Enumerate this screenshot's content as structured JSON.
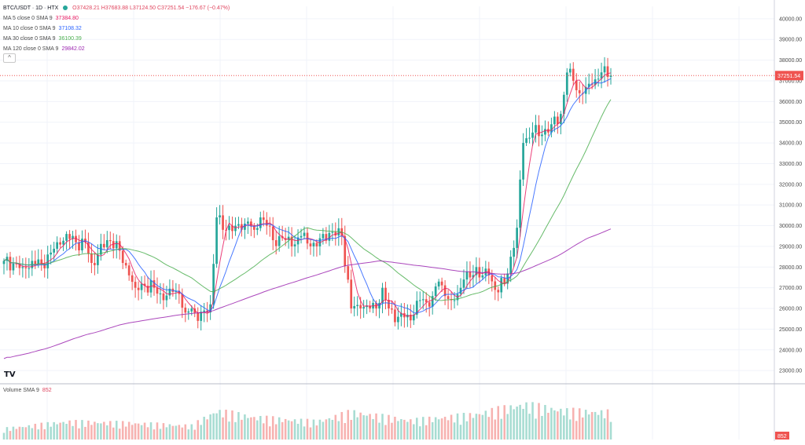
{
  "header": {
    "symbol": "BTC/USDT · 1D · HTX",
    "ohlc": "O37428.21  H37683.88  L37124.50  C37251.54  −176.67 (−0.47%)",
    "live_dot_color": "#26a69a"
  },
  "legend": [
    {
      "label": "MA 5 close 0 SMA 9",
      "value": "37384.80",
      "color": "#e91e63"
    },
    {
      "label": "MA 10 close 0 SMA 9",
      "value": "37108.32",
      "color": "#2962ff"
    },
    {
      "label": "MA 30 close 0 SMA 9",
      "value": "36100.39",
      "color": "#4caf50"
    },
    {
      "label": "MA 120 close 0 SMA 9",
      "value": "29842.02",
      "color": "#9c27b0"
    }
  ],
  "collapse_glyph": "^",
  "volume_legend": {
    "label": "Volume SMA 9",
    "value": "852"
  },
  "logo_text": "TV",
  "colors": {
    "up": "#26a69a",
    "down": "#ef5350",
    "vol_up": "#a7dcd2",
    "vol_down": "#f7b2b0",
    "grid": "#f0f3fa",
    "axis_text": "#4a4a4a",
    "ma5": "#e91e63",
    "ma10": "#2962ff",
    "ma30": "#4caf50",
    "ma120": "#9c27b0",
    "price_tag": "#ef5350"
  },
  "chart_data": {
    "type": "candlestick",
    "title": "BTC/USDT · 1D · HTX",
    "ylim": [
      22400,
      40600
    ],
    "y_ticks": [
      23000,
      24000,
      25000,
      26000,
      27000,
      28000,
      29000,
      30000,
      31000,
      32000,
      33000,
      34000,
      35000,
      36000,
      37000,
      38000,
      39000,
      40000
    ],
    "y_tick_labels": [
      "23000.00",
      "24000.00",
      "25000.00",
      "26000.00",
      "27000.00",
      "28000.00",
      "29000.00",
      "30000.00",
      "31000.00",
      "32000.00",
      "33000.00",
      "34000.00",
      "35000.00",
      "36000.00",
      "37000.00",
      "38000.00",
      "39000.00",
      "40000.00"
    ],
    "last_price": 37251.54,
    "last_price_label": "37251.54",
    "volume_last_label": "852",
    "close_keypoints": [
      [
        0,
        28300
      ],
      [
        6,
        28000
      ],
      [
        9,
        28300
      ],
      [
        12,
        28150
      ],
      [
        15,
        28700
      ],
      [
        17,
        29200
      ],
      [
        20,
        29600
      ],
      [
        23,
        29200
      ],
      [
        26,
        29200
      ],
      [
        28,
        28200
      ],
      [
        30,
        28600
      ],
      [
        33,
        29300
      ],
      [
        36,
        29250
      ],
      [
        38,
        28200
      ],
      [
        40,
        27600
      ],
      [
        42,
        27000
      ],
      [
        45,
        27100
      ],
      [
        48,
        27000
      ],
      [
        51,
        26400
      ],
      [
        54,
        26800
      ],
      [
        56,
        26700
      ],
      [
        58,
        25800
      ],
      [
        60,
        26000
      ],
      [
        62,
        25400
      ],
      [
        64,
        25900
      ],
      [
        66,
        26200
      ],
      [
        68,
        30400
      ],
      [
        70,
        29800
      ],
      [
        72,
        30000
      ],
      [
        74,
        30000
      ],
      [
        76,
        29800
      ],
      [
        78,
        30200
      ],
      [
        80,
        29800
      ],
      [
        82,
        30400
      ],
      [
        84,
        30000
      ],
      [
        86,
        29300
      ],
      [
        89,
        29400
      ],
      [
        92,
        29000
      ],
      [
        95,
        29500
      ],
      [
        98,
        29000
      ],
      [
        100,
        29000
      ],
      [
        102,
        29600
      ],
      [
        105,
        29700
      ],
      [
        108,
        29500
      ],
      [
        111,
        26000
      ],
      [
        114,
        26000
      ],
      [
        117,
        26000
      ],
      [
        119,
        26000
      ],
      [
        121,
        27000
      ],
      [
        123,
        26000
      ],
      [
        126,
        25600
      ],
      [
        129,
        25700
      ],
      [
        131,
        25700
      ],
      [
        133,
        26400
      ],
      [
        135,
        26300
      ],
      [
        137,
        26600
      ],
      [
        139,
        27300
      ],
      [
        141,
        26600
      ],
      [
        143,
        26400
      ],
      [
        145,
        26700
      ],
      [
        147,
        27400
      ],
      [
        149,
        27500
      ],
      [
        151,
        28000
      ],
      [
        153,
        27600
      ],
      [
        155,
        27600
      ],
      [
        157,
        26900
      ],
      [
        160,
        27200
      ],
      [
        162,
        28500
      ],
      [
        164,
        29900
      ],
      [
        166,
        34000
      ],
      [
        169,
        34500
      ],
      [
        172,
        34400
      ],
      [
        175,
        34900
      ],
      [
        178,
        35400
      ],
      [
        180,
        37400
      ],
      [
        182,
        37000
      ],
      [
        184,
        36400
      ],
      [
        186,
        36700
      ],
      [
        188,
        36800
      ],
      [
        190,
        37100
      ],
      [
        192,
        37700
      ],
      [
        194,
        37251.54
      ]
    ],
    "volume_keypoints": [
      [
        0,
        340
      ],
      [
        20,
        560
      ],
      [
        40,
        520
      ],
      [
        60,
        430
      ],
      [
        68,
        900
      ],
      [
        80,
        700
      ],
      [
        100,
        560
      ],
      [
        111,
        860
      ],
      [
        130,
        600
      ],
      [
        150,
        780
      ],
      [
        166,
        1100
      ],
      [
        180,
        900
      ],
      [
        194,
        852
      ]
    ],
    "volume_max": 1500,
    "ma_periods": [
      5,
      10,
      30,
      120
    ],
    "ma_end_values": [
      37384.8,
      37108.32,
      36100.39,
      29842.02
    ]
  }
}
